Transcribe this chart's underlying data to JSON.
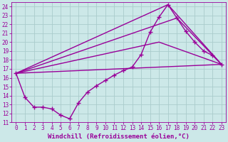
{
  "xlabel": "Windchill (Refroidissement éolien,°C)",
  "bg_color": "#cce8e8",
  "grid_color": "#aacccc",
  "line_color": "#990099",
  "xlim": [
    -0.5,
    23.5
  ],
  "ylim": [
    11,
    24.5
  ],
  "xticks": [
    0,
    1,
    2,
    3,
    4,
    5,
    6,
    7,
    8,
    9,
    10,
    11,
    12,
    13,
    14,
    15,
    16,
    17,
    18,
    19,
    20,
    21,
    22,
    23
  ],
  "yticks": [
    11,
    12,
    13,
    14,
    15,
    16,
    17,
    18,
    19,
    20,
    21,
    22,
    23,
    24
  ],
  "line1_x": [
    0,
    1,
    2,
    3,
    4,
    5,
    6,
    7,
    8,
    9,
    10,
    11,
    12,
    13,
    14,
    15,
    16,
    17,
    18,
    19,
    20,
    21,
    22,
    23
  ],
  "line1_y": [
    16.5,
    13.8,
    12.7,
    12.7,
    12.5,
    11.8,
    11.4,
    13.2,
    14.4,
    15.1,
    15.7,
    16.3,
    16.8,
    17.2,
    18.6,
    21.1,
    22.8,
    24.2,
    22.7,
    21.2,
    20.0,
    19.0,
    18.5,
    17.5
  ],
  "line2_x": [
    0,
    23
  ],
  "line2_y": [
    16.5,
    17.5
  ],
  "line3_x": [
    0,
    16,
    23
  ],
  "line3_y": [
    16.5,
    20.0,
    17.5
  ],
  "line4_x": [
    0,
    17,
    23
  ],
  "line4_y": [
    16.5,
    24.2,
    17.5
  ],
  "line5_x": [
    0,
    18,
    23
  ],
  "line5_y": [
    16.5,
    22.7,
    17.5
  ],
  "marker": "+",
  "markersize": 5,
  "linewidth": 1.0,
  "tick_fontsize": 5.5,
  "label_fontsize": 6.5
}
